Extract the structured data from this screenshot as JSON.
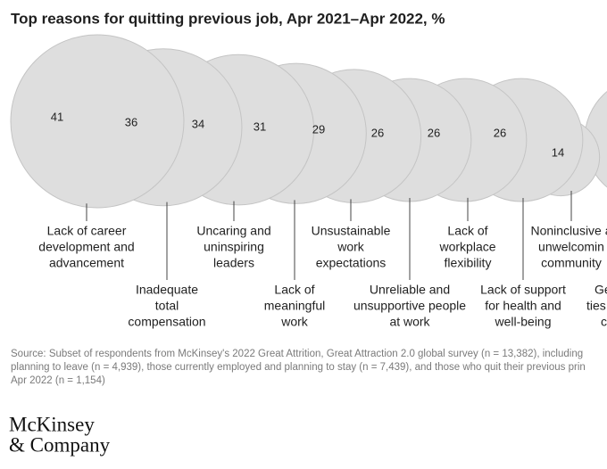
{
  "chart_data": {
    "type": "bubble",
    "title": "Top reasons for quitting previous job, Apr 2021–Apr 2022, %",
    "categories": [
      [
        "Lack of career",
        "development and",
        "advancement"
      ],
      [
        "Inadequate",
        "total",
        "compensation"
      ],
      [
        "Uncaring and",
        "uninspiring",
        "leaders"
      ],
      [
        "Lack of",
        "meaningful",
        "work"
      ],
      [
        "Unsustainable",
        "work",
        "expectations"
      ],
      [
        "Unreliable and",
        "unsupportive people",
        "at work"
      ],
      [
        "Lack of",
        "workplace",
        "flexibility"
      ],
      [
        "Lack of support",
        "for health and",
        "well-being"
      ],
      [
        "Noninclusive a",
        "unwelcomin",
        "community"
      ],
      [
        "Ge",
        "ties",
        "c"
      ]
    ],
    "values": [
      41,
      36,
      34,
      31,
      29,
      26,
      26,
      26,
      14,
      null
    ],
    "color": "#dedede",
    "source": [
      "Source: Subset of respondents from McKinsey's 2022 Great Attrition, Great Attraction 2.0 global survey (n = 13,382), including",
      "planning to leave (n = 4,939), those currently employed and planning to stay (n = 7,439), and those who quit their previous prin",
      "Apr 2022 (n = 1,154)"
    ],
    "logo": [
      "McKinsey",
      "& Company"
    ]
  }
}
